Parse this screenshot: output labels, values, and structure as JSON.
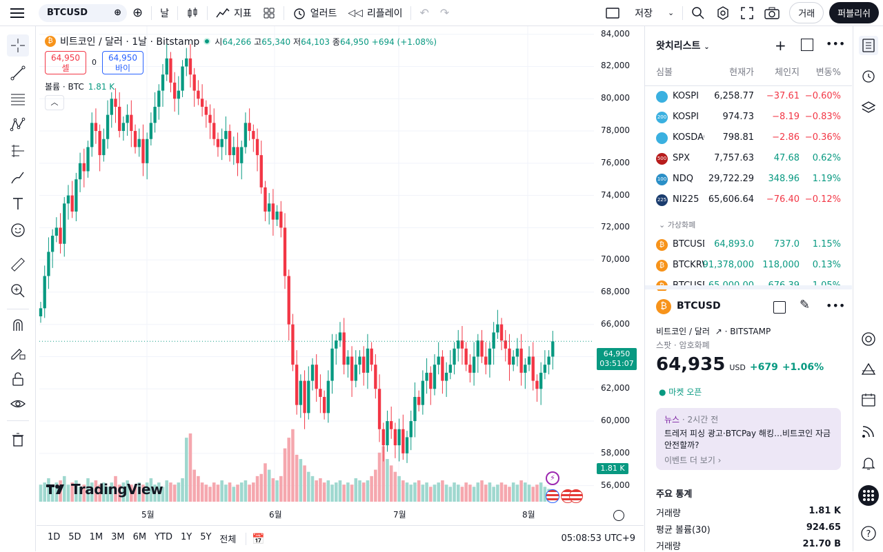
{
  "topbar": {
    "symbol": "BTCUSD",
    "interval": "날",
    "indicators_label": "지표",
    "alert_label": "얼러트",
    "replay_label": "리플레이",
    "save_label": "저장",
    "trade_label": "거래",
    "publish_label": "퍼블리쉬"
  },
  "legend": {
    "title": "비트코인 / 달러 · 1날 · Bitstamp",
    "open_label": "시",
    "open": "64,266",
    "high_label": "고",
    "high": "65,340",
    "low_label": "저",
    "low": "64,103",
    "close_label": "종",
    "close": "64,950",
    "change": "+694 (+1.08%)",
    "sell_price": "64,950",
    "sell_label": "셀",
    "spread": "0",
    "buy_price": "64,950",
    "buy_label": "바이",
    "volume_label": "볼륨 · BTC",
    "volume_value": "1.81 K"
  },
  "price_tag": {
    "price": "64,950",
    "countdown": "03:51:07"
  },
  "vol_tag": "1.81 K",
  "bottom": {
    "ranges": [
      "1D",
      "5D",
      "1M",
      "3M",
      "6M",
      "YTD",
      "1Y",
      "5Y",
      "전체"
    ],
    "clock": "05:08:53 UTC+9"
  },
  "branding": "TradingView",
  "watchlist": {
    "title": "왓치리스트",
    "columns": [
      "심볼",
      "현재가",
      "체인지",
      "변동%"
    ],
    "section_label": "가상화폐",
    "rows": [
      {
        "symbol": "KOSPI",
        "price": "6,258.77",
        "change": "−37.61",
        "pct": "−0.60%",
        "dir": "neg",
        "icon_text": "",
        "icon_color": "#3ab0e0"
      },
      {
        "symbol": "KOSPI",
        "price": "974.73",
        "change": "−8.19",
        "pct": "−0.83%",
        "dir": "neg",
        "icon_text": "200",
        "icon_color": "#3ab0e0"
      },
      {
        "symbol": "KOSDAQ",
        "price": "798.81",
        "change": "−2.86",
        "pct": "−0.36%",
        "dir": "neg",
        "icon_text": "",
        "icon_color": "#3ab0e0"
      },
      {
        "symbol": "SPX",
        "price": "7,757.63",
        "change": "47.68",
        "pct": "0.62%",
        "dir": "pos",
        "icon_text": "500",
        "icon_color": "#b71c1c"
      },
      {
        "symbol": "NDQ",
        "price": "29,722.29",
        "change": "348.96",
        "pct": "1.19%",
        "dir": "pos",
        "icon_text": "100",
        "icon_color": "#2a8fc7"
      },
      {
        "symbol": "NI225",
        "price": "65,606.64",
        "change": "−76.40",
        "pct": "−0.12%",
        "dir": "neg",
        "icon_text": "225",
        "icon_color": "#1a3c6e"
      }
    ],
    "crypto_rows": [
      {
        "symbol": "BTCUSD",
        "price": "64,893.0",
        "change": "737.0",
        "pct": "1.15%",
        "dir": "pos"
      },
      {
        "symbol": "BTCKRW",
        "price": "91,378,000",
        "change": "118,000",
        "pct": "0.13%",
        "dir": "pos"
      },
      {
        "symbol": "BTCUSD",
        "price": "65,000.00",
        "change": "676.39",
        "pct": "1.05%",
        "dir": "pos"
      }
    ]
  },
  "detail": {
    "symbol": "BTCUSD",
    "name": "비트코인 / 달러",
    "exchange": "BITSTAMP",
    "type": "스팟 · 암호화폐",
    "price": "64,935",
    "currency": "USD",
    "change": "+679",
    "pct": "+1.06%",
    "market_status": "마켓 오픈",
    "news_label": "뉴스",
    "news_time": "· 2시간 전",
    "news_text": "트레저 피싱 광고·BTCPay 해킹…비트코인 자금 안전할까?",
    "news_more": "이벤트 더 보기 ›",
    "stats_title": "주요 통계",
    "stats": [
      {
        "label": "거래량",
        "value": "1.81 K"
      },
      {
        "label": "평균 볼륨(30)",
        "value": "924.65"
      },
      {
        "label": "거래량",
        "value": "21.70 B"
      }
    ]
  },
  "chart_data": {
    "type": "candlestick",
    "title": "비트코인 / 달러 · 1날 · Bitstamp",
    "x_labels": [
      "5월",
      "6월",
      "7월",
      "8월"
    ],
    "y_ticks": [
      56000,
      58000,
      60000,
      62000,
      64000,
      66000,
      68000,
      70000,
      72000,
      74000,
      76000,
      78000,
      80000,
      82000,
      84000
    ],
    "ylim": [
      55000,
      84500
    ],
    "close_series": [
      67000,
      69000,
      70500,
      71500,
      72000,
      71000,
      73500,
      74000,
      73000,
      75000,
      76000,
      75500,
      77000,
      78500,
      78000,
      76500,
      77500,
      79000,
      80000,
      79500,
      78000,
      78500,
      79000,
      78000,
      77000,
      77500,
      76000,
      77500,
      78500,
      79500,
      80500,
      81500,
      82500,
      81000,
      80000,
      80500,
      82000,
      82500,
      81500,
      80500,
      80000,
      79500,
      79000,
      78500,
      77500,
      77000,
      77500,
      78000,
      76500,
      77000,
      76000,
      77000,
      78500,
      78000,
      77500,
      76500,
      74500,
      73000,
      73500,
      72500,
      73000,
      72000,
      69000,
      66000,
      63500,
      61000,
      62500,
      60500,
      62500,
      63500,
      62000,
      61500,
      60500,
      62500,
      64500,
      65000,
      65500,
      63500,
      64000,
      62500,
      63500,
      64000,
      63000,
      64500,
      63500,
      62000,
      59500,
      58500,
      60000,
      59500,
      58500,
      59500,
      58000,
      59000,
      60000,
      61500,
      61000,
      62500,
      63000,
      62000,
      63500,
      64000,
      62500,
      63000,
      63500,
      64500,
      65000,
      64500,
      63500,
      63000,
      64000,
      65000,
      64000,
      63500,
      64500,
      65500,
      66000,
      65000,
      64500,
      63500,
      64000,
      64500,
      63000,
      63500,
      64000,
      62500,
      62000,
      63000,
      63500,
      64000,
      64950
    ],
    "volume_series": [
      0.8,
      0.9,
      1.1,
      0.7,
      0.9,
      1.0,
      1.2,
      0.8,
      0.9,
      1.0,
      0.7,
      0.8,
      1.1,
      0.9,
      1.0,
      0.8,
      0.9,
      0.7,
      0.9,
      1.2,
      0.8,
      0.9,
      1.0,
      0.8,
      0.7,
      0.9,
      0.8,
      0.9,
      1.1,
      0.8,
      0.9,
      0.7,
      1.0,
      0.9,
      0.8,
      0.9,
      1.1,
      3.0,
      3.2,
      1.5,
      1.2,
      0.9,
      0.8,
      0.7,
      0.9,
      0.8,
      1.0,
      0.8,
      0.9,
      0.7,
      0.8,
      0.9,
      1.0,
      0.8,
      0.9,
      1.2,
      1.3,
      1.8,
      1.5,
      1.1,
      1.0,
      1.2,
      2.5,
      3.0,
      3.4,
      2.2,
      2.0,
      1.7,
      1.4,
      1.2,
      1.0,
      1.1,
      0.9,
      1.0,
      0.8,
      0.9,
      1.0,
      0.8,
      0.9,
      0.8,
      1.1,
      1.0,
      0.9,
      1.0,
      1.2,
      1.5,
      2.3,
      2.6,
      2.0,
      1.7,
      1.4,
      1.2,
      1.0,
      0.9,
      0.8,
      0.9,
      1.0,
      0.8,
      0.9,
      0.7,
      0.8,
      0.9,
      1.0,
      0.8,
      0.7,
      0.9,
      0.8,
      0.7,
      0.9,
      0.8,
      0.7,
      0.9,
      1.0,
      0.8,
      0.9,
      0.7,
      0.8,
      0.9,
      0.8,
      0.7,
      0.9,
      0.8,
      1.0,
      0.9,
      0.8,
      0.7,
      0.8,
      0.9,
      0.7,
      0.6,
      0.5
    ]
  }
}
